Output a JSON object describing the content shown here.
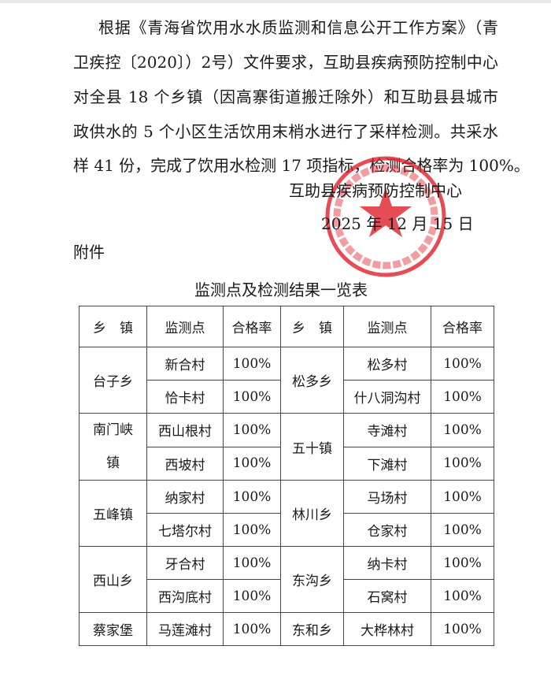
{
  "body_lines": [
    "根据《青海省饮用水水质监测和信息公开工作方案》（青",
    "卫疾控〔2020〕）2号）文件要求，互助县疾病预防控制中心",
    "对全县 18 个乡镇（因高寨街道搬迁除外）和互助县县城市",
    "政供水的 5 个小区生活饮用末梢水进行了采样检测。共采水",
    "样 41 份，完成了饮用水检测 17 项指标，检测合格率为 100%。"
  ],
  "signature": {
    "org": "互助县疾病预防控制中心",
    "date": "2025 年 12 月 15 日"
  },
  "stamp": {
    "text": "互助土族自治县疾病预防控制中心",
    "color": "#e0202a"
  },
  "attachment_label": "附件",
  "table_title": "监测点及检测结果一览表",
  "table": {
    "headers": [
      "乡　镇",
      "监测点",
      "合格率",
      "乡　镇",
      "监测点",
      "合格率"
    ],
    "left": [
      {
        "town": "台子乡",
        "sites": [
          {
            "name": "新合村",
            "rate": "100%"
          },
          {
            "name": "恰卡村",
            "rate": "100%"
          }
        ]
      },
      {
        "town": "南门峡镇",
        "town_lines": [
          "南门峡",
          "镇"
        ],
        "sites": [
          {
            "name": "西山根村",
            "rate": "100%"
          },
          {
            "name": "西坡村",
            "rate": "100%"
          }
        ]
      },
      {
        "town": "五峰镇",
        "sites": [
          {
            "name": "纳家村",
            "rate": "100%"
          },
          {
            "name": "七塔尔村",
            "rate": "100%"
          }
        ]
      },
      {
        "town": "西山乡",
        "sites": [
          {
            "name": "牙合村",
            "rate": "100%"
          },
          {
            "name": "西沟底村",
            "rate": "100%"
          }
        ]
      },
      {
        "town": "蔡家堡",
        "sites": [
          {
            "name": "马莲滩村",
            "rate": "100%"
          }
        ]
      }
    ],
    "right": [
      {
        "town": "松多乡",
        "sites": [
          {
            "name": "松多村",
            "rate": "100%"
          },
          {
            "name": "什八洞沟村",
            "rate": "100%"
          }
        ]
      },
      {
        "town": "五十镇",
        "sites": [
          {
            "name": "寺滩村",
            "rate": "100%"
          },
          {
            "name": "下滩村",
            "rate": "100%"
          }
        ]
      },
      {
        "town": "林川乡",
        "sites": [
          {
            "name": "马场村",
            "rate": "100%"
          },
          {
            "name": "仓家村",
            "rate": "100%"
          }
        ]
      },
      {
        "town": "东沟乡",
        "sites": [
          {
            "name": "纳卡村",
            "rate": "100%"
          },
          {
            "name": "石窝村",
            "rate": "100%"
          }
        ]
      },
      {
        "town": "东和乡",
        "sites": [
          {
            "name": "大桦林村",
            "rate": "100%"
          }
        ]
      }
    ]
  }
}
